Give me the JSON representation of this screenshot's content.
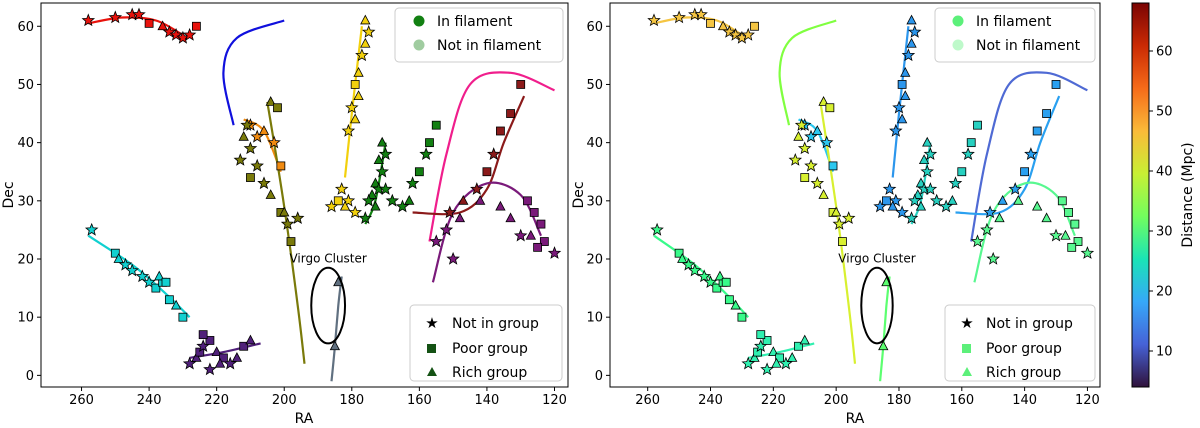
{
  "figure": {
    "colorbar": {
      "label": "Distance (Mpc)",
      "range": [
        4,
        68
      ],
      "ticks": [
        10,
        20,
        30,
        40,
        50,
        60
      ],
      "colormap": [
        "#30123b",
        "#4662d7",
        "#36a8f9",
        "#1ae4b6",
        "#72fe5e",
        "#c8ef34",
        "#faba39",
        "#f66b19",
        "#ca2a04",
        "#7a0403"
      ]
    }
  },
  "chart_data": [
    {
      "type": "scatter",
      "panel": "left",
      "coloring": "per filament",
      "xlabel": "RA",
      "ylabel": "Dec",
      "xlim": [
        272,
        116
      ],
      "ylim": [
        -2,
        64
      ],
      "xticks": [
        260,
        240,
        220,
        200,
        180,
        160,
        140,
        120
      ],
      "yticks": [
        0,
        10,
        20,
        30,
        40,
        50,
        60
      ],
      "legend_membership": [
        "In filament",
        "Not in filament"
      ],
      "legend_group": [
        "Not in group",
        "Poor group",
        "Rich group"
      ],
      "annotation": {
        "text": "Virgo Cluster",
        "ra": 187,
        "dec": 12,
        "ra_width": 10,
        "dec_height": 13
      },
      "filaments": [
        {
          "name": "F1",
          "color": "#e8120c",
          "curve": [
            [
              258,
              60.5
            ],
            [
              248,
              61.5
            ],
            [
              238,
              61
            ],
            [
              230,
              58.5
            ]
          ],
          "points": [
            [
              258,
              61,
              "star"
            ],
            [
              250,
              61.5,
              "star"
            ],
            [
              245,
              62,
              "star"
            ],
            [
              243,
              62,
              "star"
            ],
            [
              240,
              60.5,
              "square"
            ],
            [
              236,
              60,
              "triangle"
            ],
            [
              234,
              59,
              "star"
            ],
            [
              232,
              58.5,
              "star"
            ],
            [
              230,
              58,
              "star"
            ],
            [
              228,
              58.5,
              "star"
            ],
            [
              226,
              60,
              "square"
            ]
          ]
        },
        {
          "name": "F2",
          "color": "#1010dd",
          "curve": [
            [
              215,
              43
            ],
            [
              218,
              52
            ],
            [
              214,
              58
            ],
            [
              200,
              61
            ]
          ],
          "points": []
        },
        {
          "name": "F3",
          "color": "#f08a10",
          "curve": [
            [
              212,
              44
            ],
            [
              206,
              42
            ],
            [
              201,
              35
            ]
          ],
          "points": [
            [
              210,
              43,
              "star"
            ],
            [
              208,
              41,
              "star"
            ],
            [
              206,
              42,
              "triangle"
            ],
            [
              203,
              40,
              "star"
            ],
            [
              201,
              36,
              "square"
            ]
          ]
        },
        {
          "name": "F4",
          "color": "#7a7a0a",
          "curve": [
            [
              205,
              47
            ],
            [
              200,
              29
            ],
            [
              196,
              12
            ],
            [
              194,
              2
            ]
          ],
          "points": [
            [
              204,
              47,
              "triangle"
            ],
            [
              202,
              46,
              "square"
            ],
            [
              211,
              43,
              "star"
            ],
            [
              212,
              41,
              "triangle"
            ],
            [
              210,
              39,
              "star"
            ],
            [
              213,
              37,
              "star"
            ],
            [
              208,
              36,
              "star"
            ],
            [
              210,
              34,
              "square"
            ],
            [
              206,
              33,
              "star"
            ],
            [
              204,
              31,
              "triangle"
            ],
            [
              201,
              28,
              "square"
            ],
            [
              199,
              26,
              "star"
            ],
            [
              198,
              23,
              "square"
            ],
            [
              200,
              28,
              "triangle"
            ],
            [
              196,
              27,
              "star"
            ]
          ]
        },
        {
          "name": "F5",
          "color": "#f2d00d",
          "curve": [
            [
              182,
              34
            ],
            [
              180,
              45
            ],
            [
              177,
              60
            ]
          ],
          "points": [
            [
              176,
              61,
              "triangle"
            ],
            [
              175,
              59,
              "star"
            ],
            [
              176,
              57,
              "triangle"
            ],
            [
              177,
              55,
              "star"
            ],
            [
              178,
              52,
              "triangle"
            ],
            [
              179,
              50,
              "square"
            ],
            [
              178,
              48,
              "triangle"
            ],
            [
              180,
              46,
              "star"
            ],
            [
              179,
              44,
              "triangle"
            ],
            [
              181,
              42,
              "star"
            ],
            [
              183,
              32,
              "star"
            ],
            [
              184,
              30,
              "square"
            ],
            [
              181,
              30,
              "star"
            ],
            [
              179,
              28,
              "star"
            ],
            [
              186,
              29,
              "star"
            ],
            [
              182,
              29,
              "triangle"
            ]
          ]
        },
        {
          "name": "F6",
          "color": "#128012",
          "curve": [
            [
              170,
              40
            ],
            [
              173,
              30
            ],
            [
              176,
              26
            ]
          ],
          "points": [
            [
              171,
              40,
              "triangle"
            ],
            [
              170,
              38,
              "star"
            ],
            [
              172,
              37,
              "triangle"
            ],
            [
              171,
              35,
              "star"
            ],
            [
              173,
              33,
              "triangle"
            ],
            [
              172,
              32,
              "star"
            ],
            [
              174,
              31,
              "triangle"
            ],
            [
              175,
              30,
              "star"
            ],
            [
              176,
              27,
              "star"
            ],
            [
              173,
              29,
              "triangle"
            ],
            [
              170,
              32,
              "star"
            ],
            [
              165,
              29,
              "star"
            ],
            [
              163,
              30,
              "triangle"
            ],
            [
              162,
              33,
              "star"
            ],
            [
              160,
              35,
              "square"
            ],
            [
              158,
              38,
              "star"
            ],
            [
              157,
              40,
              "square"
            ],
            [
              155,
              43,
              "square"
            ],
            [
              168,
              30,
              "star"
            ]
          ]
        },
        {
          "name": "F7",
          "color": "#f01e8c",
          "curve": [
            [
              157,
              23
            ],
            [
              152,
              38
            ],
            [
              145,
              50
            ],
            [
              133,
              52
            ],
            [
              120,
              49
            ]
          ],
          "points": []
        },
        {
          "name": "F8",
          "color": "#8b1a1a",
          "curve": [
            [
              162,
              28
            ],
            [
              148,
              28
            ],
            [
              140,
              32
            ],
            [
              135,
              40
            ],
            [
              129,
              48
            ]
          ],
          "points": [
            [
              130,
              50,
              "square"
            ],
            [
              133,
              45,
              "square"
            ],
            [
              136,
              42,
              "square"
            ],
            [
              138,
              38,
              "star"
            ],
            [
              140,
              35,
              "square"
            ],
            [
              143,
              32,
              "star"
            ],
            [
              147,
              30,
              "triangle"
            ],
            [
              151,
              28,
              "star"
            ]
          ]
        },
        {
          "name": "F9",
          "color": "#7a1a7a",
          "curve": [
            [
              156,
              16
            ],
            [
              150,
              28
            ],
            [
              140,
              33
            ],
            [
              130,
              31
            ],
            [
              124,
              24
            ]
          ],
          "points": [
            [
              128,
              30,
              "square"
            ],
            [
              126,
              28,
              "square"
            ],
            [
              124,
              26,
              "square"
            ],
            [
              123,
              23,
              "square"
            ],
            [
              125,
              22,
              "square"
            ],
            [
              127,
              24,
              "triangle"
            ],
            [
              133,
              27,
              "triangle"
            ],
            [
              136,
              29,
              "triangle"
            ],
            [
              142,
              30,
              "triangle"
            ],
            [
              148,
              27,
              "triangle"
            ],
            [
              152,
              25,
              "star"
            ],
            [
              155,
              23,
              "star"
            ],
            [
              150,
              20,
              "star"
            ],
            [
              130,
              24,
              "star"
            ],
            [
              120,
              21,
              "star"
            ]
          ]
        },
        {
          "name": "F10",
          "color": "#10d0d0",
          "curve": [
            [
              258,
              24
            ],
            [
              245,
              19
            ],
            [
              235,
              14
            ],
            [
              228,
              10
            ]
          ],
          "points": [
            [
              257,
              25,
              "star"
            ],
            [
              250,
              21,
              "square"
            ],
            [
              249,
              20,
              "triangle"
            ],
            [
              247,
              19,
              "star"
            ],
            [
              245,
              18,
              "star"
            ],
            [
              242,
              17,
              "star"
            ],
            [
              240,
              16,
              "star"
            ],
            [
              238,
              15,
              "square"
            ],
            [
              236,
              16,
              "square"
            ],
            [
              234,
              13,
              "square"
            ],
            [
              232,
              12,
              "triangle"
            ],
            [
              230,
              10,
              "square"
            ],
            [
              237,
              17,
              "triangle"
            ],
            [
              235,
              16,
              "square"
            ]
          ]
        },
        {
          "name": "F11",
          "color": "#50207a",
          "curve": [
            [
              228,
              3
            ],
            [
              218,
              4
            ],
            [
              207,
              5.5
            ]
          ],
          "points": [
            [
              228,
              2,
              "star"
            ],
            [
              226,
              3,
              "triangle"
            ],
            [
              225,
              4,
              "square"
            ],
            [
              224,
              5,
              "star"
            ],
            [
              222,
              6,
              "square"
            ],
            [
              220,
              4,
              "triangle"
            ],
            [
              218,
              3,
              "square"
            ],
            [
              216,
              2,
              "star"
            ],
            [
              214,
              3,
              "triangle"
            ],
            [
              212,
              5,
              "square"
            ],
            [
              210,
              6,
              "triangle"
            ],
            [
              222,
              1,
              "star"
            ],
            [
              224,
              7,
              "square"
            ],
            [
              219,
              2,
              "triangle"
            ]
          ]
        },
        {
          "name": "F12",
          "color": "#607080",
          "curve": [
            [
              186,
              -1
            ],
            [
              185,
              5
            ],
            [
              184,
              12
            ],
            [
              183,
              17
            ]
          ],
          "points": [
            [
              184,
              16,
              "triangle"
            ],
            [
              185,
              5,
              "triangle"
            ]
          ]
        }
      ]
    },
    {
      "type": "scatter",
      "panel": "right",
      "coloring": "distance (Mpc)",
      "xlabel": "RA",
      "ylabel": "Dec",
      "xlim": [
        272,
        116
      ],
      "ylim": [
        -2,
        64
      ],
      "xticks": [
        260,
        240,
        220,
        200,
        180,
        160,
        140,
        120
      ],
      "yticks": [
        0,
        10,
        20,
        30,
        40,
        50,
        60
      ],
      "legend_membership": [
        "In filament",
        "Not in filament"
      ],
      "legend_group": [
        "Not in group",
        "Poor group",
        "Rich group"
      ],
      "annotation": {
        "text": "Virgo Cluster",
        "ra": 187,
        "dec": 12,
        "ra_width": 10,
        "dec_height": 13
      },
      "filament_distances_mpc": {
        "F1": 45,
        "F2": 32,
        "F3": 20,
        "F4": 38,
        "F5": 18,
        "F6": 22,
        "F7": 12,
        "F8": 24,
        "F9": 30,
        "F10": 28,
        "F11": 27,
        "F12": 30
      },
      "filament_colors": {
        "F1": "#f5c542",
        "F2": "#80ff40",
        "F3": "#2bc8f0",
        "F4": "#d8f030",
        "F5": "#2c96ec",
        "F6": "#27d0c0",
        "F7": "#4f6ad4",
        "F8": "#2aa0f0",
        "F9": "#58f890",
        "F10": "#38fb8a",
        "F11": "#30f0b0",
        "F12": "#5cff70"
      }
    }
  ]
}
